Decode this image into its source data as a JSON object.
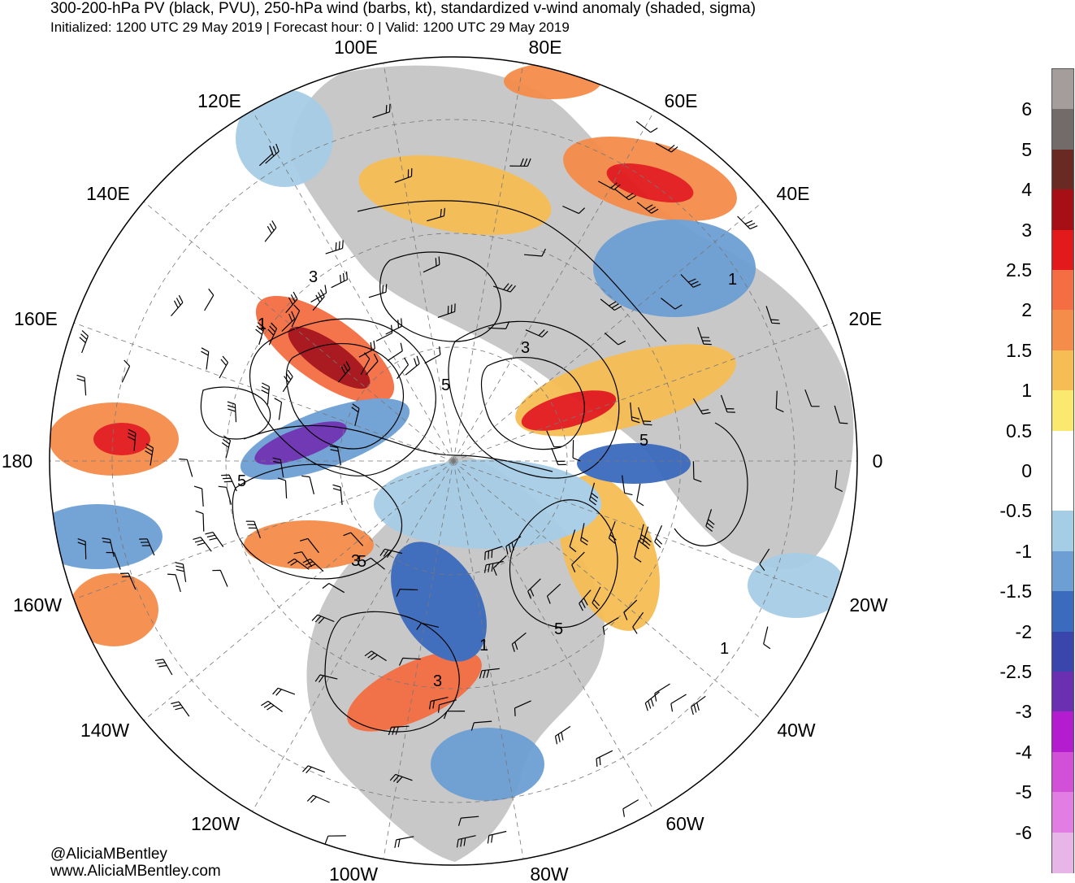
{
  "header": {
    "title": "300-200-hPa PV (black, PVU), 250-hPa wind (barbs, kt), standardized v-wind anomaly (shaded, sigma)",
    "subtitle": "Initialized: 1200 UTC 29 May 2019 | Forecast hour: 0 | Valid: 1200 UTC 29 May 2019"
  },
  "map": {
    "projection": "north-polar-stereographic",
    "land_color": "#c8c8c8",
    "longitude_labels": [
      "100E",
      "80E",
      "120E",
      "60E",
      "140E",
      "40E",
      "160E",
      "20E",
      "180",
      "0",
      "160W",
      "20W",
      "140W",
      "40W",
      "120W",
      "60W",
      "100W",
      "80W"
    ],
    "pv_contour_labels": [
      "3",
      "1",
      "3",
      "5",
      "5",
      "5",
      "1",
      "5",
      "3",
      "5",
      "1",
      "3",
      "1"
    ]
  },
  "colorbar": {
    "labels": [
      "6",
      "5",
      "4",
      "3",
      "2.5",
      "2",
      "1.5",
      "1",
      "0.5",
      "0",
      "-0.5",
      "-1",
      "-1.5",
      "-2",
      "-2.5",
      "-3",
      "-4",
      "-5",
      "-6"
    ],
    "colors": [
      "#a59c9c",
      "#736a6a",
      "#6a2a24",
      "#a50f15",
      "#e31a1c",
      "#f46d43",
      "#f58d4a",
      "#f6bd55",
      "#fbe86f",
      "#ffffff",
      "#ffffff",
      "#a6cde6",
      "#6d9fd4",
      "#3a6bbd",
      "#3b46ad",
      "#6b2fb2",
      "#b41cd0",
      "#d24fd8",
      "#e17de3",
      "#e8b5e8"
    ]
  },
  "credits": {
    "handle": "@AliciaMBentley",
    "site": "www.AliciaMBentley.com"
  }
}
